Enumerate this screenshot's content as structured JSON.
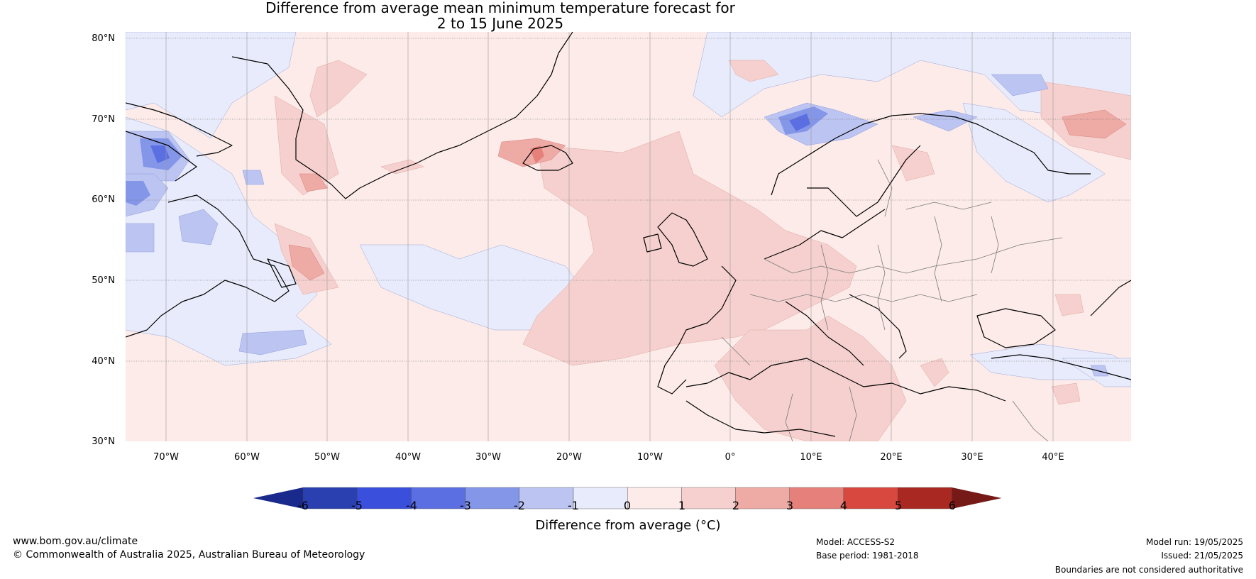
{
  "title": {
    "line1": "Difference from average mean minimum temperature forecast for",
    "line2": "2 to 15 June 2025"
  },
  "lat_labels": [
    "80°N",
    "70°N",
    "60°N",
    "50°N",
    "40°N",
    "30°N"
  ],
  "lon_labels": [
    "70°W",
    "60°W",
    "50°W",
    "40°W",
    "30°W",
    "20°W",
    "10°W",
    "0°",
    "10°E",
    "20°E",
    "30°E",
    "40°E"
  ],
  "colorbar": {
    "ticks": [
      "-6",
      "-5",
      "-4",
      "-3",
      "-2",
      "-1",
      "0",
      "1",
      "2",
      "3",
      "4",
      "5",
      "6"
    ],
    "colors": [
      "#1a2a8c",
      "#2a3fb0",
      "#3a4fdc",
      "#5c6fe2",
      "#8496e8",
      "#bcc4f2",
      "#e8ebfb",
      "#fcebe9",
      "#f5d0ce",
      "#eeaaa5",
      "#e5817a",
      "#d9483e",
      "#aa2822",
      "#751a17"
    ],
    "label": "Difference from average (°C)"
  },
  "footer": {
    "website": "www.bom.gov.au/climate",
    "copyright": "© Commonwealth of Australia 2025, Australian Bureau of Meteorology",
    "model": "Model: ACCESS-S2",
    "base_period": "Base period: 1981-2018",
    "model_run": "Model run: 19/05/2025",
    "issued": "Issued: 21/05/2025",
    "disclaimer": "Boundaries are not considered authoritative"
  }
}
